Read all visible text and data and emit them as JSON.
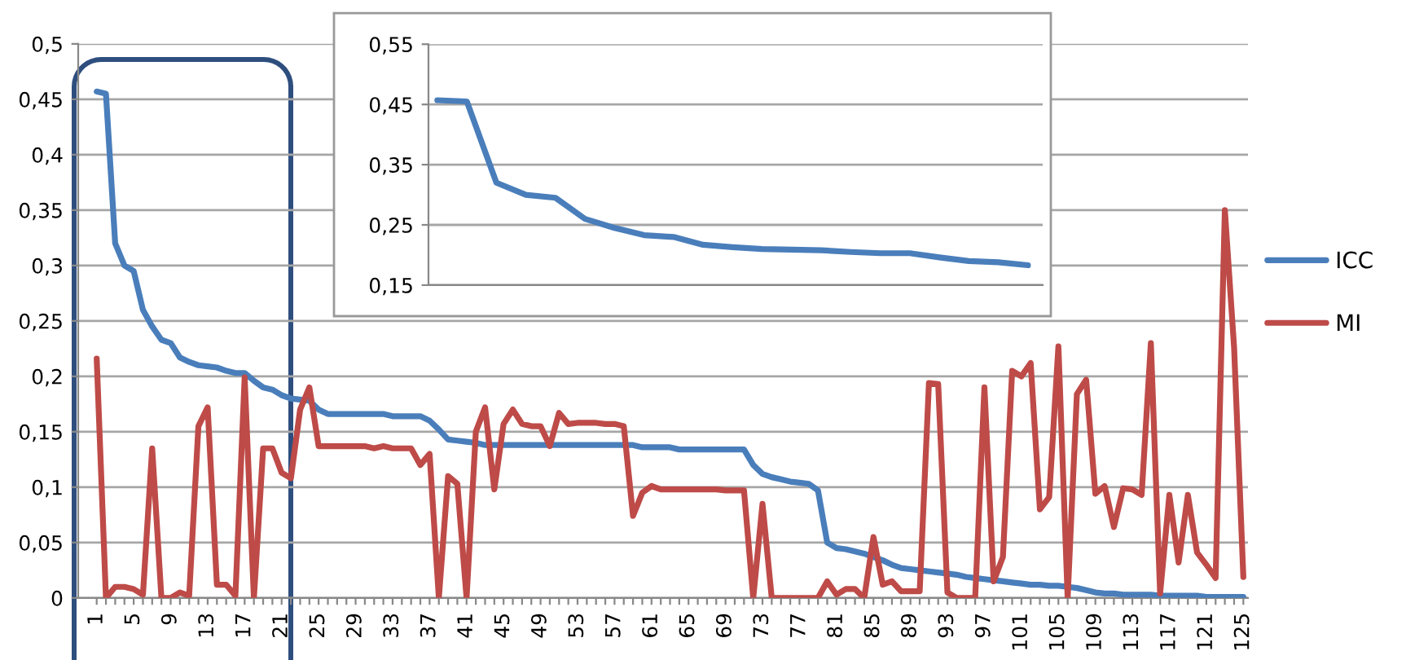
{
  "chart_data": [
    {
      "type": "line",
      "categories": [
        "1",
        null,
        null,
        null,
        "5",
        null,
        null,
        null,
        "9",
        null,
        null,
        null,
        "13",
        null,
        null,
        null,
        "17",
        null,
        null,
        null,
        "21",
        null,
        null,
        null,
        "25",
        null,
        null,
        null,
        "29",
        null,
        null,
        null,
        "33",
        null,
        null,
        null,
        "37",
        null,
        null,
        null,
        "41",
        null,
        null,
        null,
        "45",
        null,
        null,
        null,
        "49",
        null,
        null,
        null,
        "53",
        null,
        null,
        null,
        "57",
        null,
        null,
        null,
        "61",
        null,
        null,
        null,
        "65",
        null,
        null,
        null,
        "69",
        null,
        null,
        null,
        "73",
        null,
        null,
        null,
        "77",
        null,
        null,
        null,
        "81",
        null,
        null,
        null,
        "85",
        null,
        null,
        null,
        "89",
        null,
        null,
        null,
        "93",
        null,
        null,
        null,
        "97",
        null,
        null,
        null,
        "101",
        null,
        null,
        null,
        "105",
        null,
        null,
        null,
        "109",
        null,
        null,
        null,
        "113",
        null,
        null,
        null,
        "117",
        null,
        null,
        null,
        "121",
        null,
        null,
        null,
        "125"
      ],
      "series": [
        {
          "name": "ICC",
          "color": "#4a7ebb",
          "values": [
            0.457,
            0.455,
            0.32,
            0.3,
            0.295,
            0.26,
            0.245,
            0.233,
            0.23,
            0.217,
            0.213,
            0.21,
            0.209,
            0.208,
            0.205,
            0.203,
            0.203,
            0.196,
            0.19,
            0.188,
            0.183,
            0.18,
            0.179,
            0.178,
            0.17,
            0.166,
            0.166,
            0.166,
            0.166,
            0.166,
            0.166,
            0.166,
            0.164,
            0.164,
            0.164,
            0.164,
            0.16,
            0.152,
            0.143,
            0.142,
            0.141,
            0.14,
            0.138,
            0.138,
            0.138,
            0.138,
            0.138,
            0.138,
            0.138,
            0.138,
            0.138,
            0.138,
            0.138,
            0.138,
            0.138,
            0.138,
            0.138,
            0.138,
            0.138,
            0.136,
            0.136,
            0.136,
            0.136,
            0.134,
            0.134,
            0.134,
            0.134,
            0.134,
            0.134,
            0.134,
            0.134,
            0.12,
            0.112,
            0.109,
            0.107,
            0.105,
            0.104,
            0.103,
            0.097,
            0.05,
            0.045,
            0.044,
            0.042,
            0.04,
            0.037,
            0.034,
            0.03,
            0.027,
            0.026,
            0.025,
            0.024,
            0.023,
            0.022,
            0.021,
            0.019,
            0.018,
            0.017,
            0.016,
            0.015,
            0.014,
            0.013,
            0.012,
            0.012,
            0.011,
            0.011,
            0.01,
            0.009,
            0.007,
            0.005,
            0.004,
            0.004,
            0.003,
            0.003,
            0.003,
            0.003,
            0.002,
            0.002,
            0.002,
            0.002,
            0.002,
            0.001,
            0.001,
            0.001,
            0.001,
            0.001
          ]
        },
        {
          "name": "MI",
          "color": "#be4b48",
          "values": [
            0.216,
            0,
            0.01,
            0.01,
            0.008,
            0.003,
            0.135,
            0,
            0,
            0.005,
            0.002,
            0.155,
            0.172,
            0.012,
            0.012,
            0.002,
            0.199,
            0,
            0.135,
            0.135,
            0.113,
            0.108,
            0.17,
            0.19,
            0.137,
            0.137,
            0.137,
            0.137,
            0.137,
            0.137,
            0.135,
            0.137,
            0.135,
            0.135,
            0.135,
            0.12,
            0.13,
            0,
            0.11,
            0.103,
            0,
            0.15,
            0.172,
            0.098,
            0.157,
            0.17,
            0.157,
            0.155,
            0.155,
            0.137,
            0.167,
            0.157,
            0.158,
            0.158,
            0.158,
            0.157,
            0.157,
            0.155,
            0.074,
            0.095,
            0.101,
            0.098,
            0.098,
            0.098,
            0.098,
            0.098,
            0.098,
            0.098,
            0.097,
            0.097,
            0.097,
            0,
            0.085,
            0,
            0,
            0,
            0,
            0,
            0,
            0.015,
            0.003,
            0.008,
            0.008,
            0,
            0.055,
            0.012,
            0.015,
            0.006,
            0.006,
            0.006,
            0.194,
            0.193,
            0.005,
            0,
            0,
            0,
            0.19,
            0.015,
            0.037,
            0.205,
            0.2,
            0.212,
            0.08,
            0.091,
            0.227,
            0,
            0.184,
            0.197,
            0.094,
            0.101,
            0.064,
            0.099,
            0.098,
            0.093,
            0.23,
            0.004,
            0.093,
            0.032,
            0.093,
            0.041,
            0.03,
            0.018,
            0.35,
            0.226,
            0.019
          ]
        }
      ],
      "ylim": [
        0,
        0.5
      ],
      "yticks": [
        0,
        {
          "value": 0.05,
          "label": "0,05"
        },
        {
          "value": 0.1,
          "label": "0,1"
        },
        {
          "value": 0.15,
          "label": "0,15"
        },
        {
          "value": 0.2,
          "label": "0,2"
        },
        {
          "value": 0.25,
          "label": "0,25"
        },
        {
          "value": 0.3,
          "label": "0,3"
        },
        {
          "value": 0.35,
          "label": "0,35"
        },
        {
          "value": 0.4,
          "label": "0,4"
        },
        {
          "value": 0.45,
          "label": "0,45"
        },
        {
          "value": 0.5,
          "label": "0,5"
        }
      ],
      "grid": "y",
      "legend": "right"
    },
    {
      "type": "line",
      "categories": [
        null,
        null,
        null,
        null,
        null,
        null,
        null,
        null,
        null,
        null,
        null,
        null,
        null,
        null,
        null,
        null,
        null,
        null,
        null,
        null,
        null
      ],
      "series": [
        {
          "color": "#4a7ebb",
          "values": [
            0.457,
            0.455,
            0.32,
            0.3,
            0.295,
            0.26,
            0.245,
            0.233,
            0.23,
            0.217,
            0.213,
            0.21,
            0.209,
            0.208,
            0.205,
            0.203,
            0.203,
            0.196,
            0.19,
            0.188,
            0.183
          ]
        }
      ],
      "ylim": [
        0.15,
        0.55
      ],
      "yticks": [
        {
          "value": 0.15,
          "label": "0,15"
        },
        {
          "value": 0.25,
          "label": "0,25"
        },
        {
          "value": 0.35,
          "label": "0,35"
        },
        {
          "value": 0.45,
          "label": "0,45"
        },
        {
          "value": 0.55,
          "label": "0,55"
        }
      ],
      "grid": "y",
      "tick_labels": "y"
    }
  ]
}
